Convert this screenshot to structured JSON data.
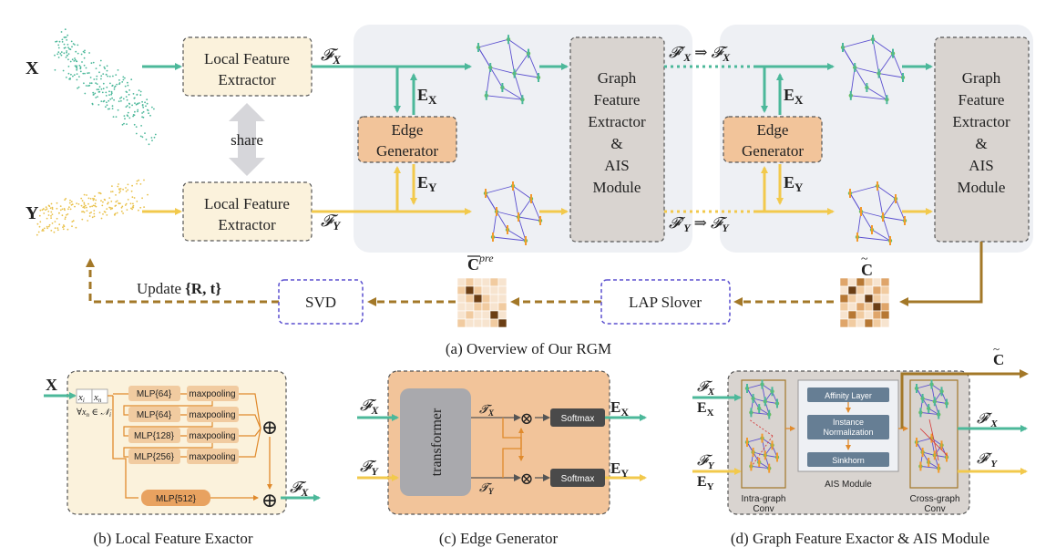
{
  "overview": {
    "input_x": "X",
    "input_y": "Y",
    "share": "share",
    "local_extractor_top": [
      "Local Feature",
      "Extractor"
    ],
    "local_extractor_bottom": [
      "Local Feature",
      "Extractor"
    ],
    "feat_x": "𝓕",
    "feat_x_sub": "X",
    "feat_y": "𝓕",
    "feat_y_sub": "Y",
    "edge_x": "E",
    "edge_x_sub": "X",
    "edge_y": "E",
    "edge_y_sub": "Y",
    "edge_generator_1": [
      "Edge",
      "Generator"
    ],
    "edge_generator_2": [
      "Edge",
      "Generator"
    ],
    "gfe_1": [
      "Graph",
      "Feature",
      "Extractor",
      "&",
      "AIS",
      "Module"
    ],
    "gfe_2": [
      "Graph",
      "Feature",
      "Extractor",
      "&",
      "AIS",
      "Module"
    ],
    "update_x": "𝓕′",
    "update_x_sub": "X",
    "update_y": "𝓕′",
    "update_y_sub": "Y",
    "implies": "⇒",
    "c_pre": "C",
    "c_pre_sup": "pre",
    "c_tilde": "C",
    "lap": "LAP Slover",
    "svd": "SVD",
    "update": "Update",
    "update_params": "{R, t}",
    "caption": "(a) Overview of Our RGM"
  },
  "local": {
    "input": "X",
    "xi": "x",
    "xi_sub": "i",
    "xn": "x",
    "xn_sub": "n",
    "forall": "∀x",
    "forall_sub": "n",
    "forall_rest": " ∈ 𝒩",
    "forall_sub2": "i",
    "mlps": [
      "MLP{64}",
      "MLP{64}",
      "MLP{128}",
      "MLP{256}"
    ],
    "pools": [
      "maxpooling",
      "maxpooling",
      "maxpooling",
      "maxpooling"
    ],
    "mlp_final": "MLP{512}",
    "output": "𝓕",
    "output_sub": "X",
    "caption": "(b) Local Feature Exactor"
  },
  "edge": {
    "in_x": "𝓕",
    "in_x_sub": "X",
    "in_y": "𝓕",
    "in_y_sub": "Y",
    "transformer": "transformer",
    "tx": "𝓣",
    "tx_sub": "X",
    "ty": "𝓣",
    "ty_sub": "Y",
    "softmax": "Softmax",
    "out_x": "E",
    "out_x_sub": "X",
    "out_y": "E",
    "out_y_sub": "Y",
    "caption": "(c) Edge Generator"
  },
  "graph": {
    "in_fx": "𝓕",
    "in_fx_sub": "X",
    "in_ex": "E",
    "in_ex_sub": "X",
    "in_fy": "𝓕",
    "in_fy_sub": "Y",
    "in_ey": "E",
    "in_ey_sub": "Y",
    "intra": [
      "Intra-graph",
      "Conv"
    ],
    "affinity": "Affinity Layer",
    "instance": [
      "Instance",
      "Normalization"
    ],
    "sinkhorn": "Sinkhorn",
    "ais": "AIS Module",
    "cross": [
      "Cross-graph",
      "Conv"
    ],
    "out_c": "C",
    "out_fx": "𝓕′",
    "out_fx_sub": "X",
    "out_fy": "𝓕′",
    "out_fy_sub": "Y",
    "caption": "(d) Graph Feature Exactor & AIS Module"
  },
  "colors": {
    "teal": "#4cb89a",
    "yellow": "#f2c94c",
    "brown": "#a37828",
    "panel": "#eef0f4",
    "cream": "#fbf2dc",
    "orange_box": "#f2c49a",
    "graph_box": "#d9d4d0",
    "purple": "#5a4fcf"
  }
}
